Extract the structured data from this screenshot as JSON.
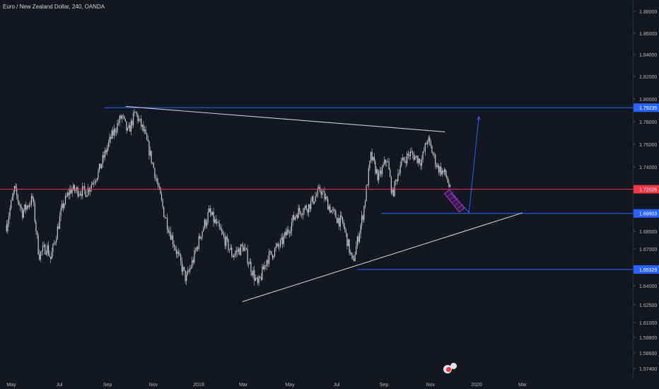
{
  "symbol": {
    "title": "Euro / New Zealand Dollar, 240, OANDA"
  },
  "colors": {
    "background": "#131722",
    "axis_text": "#b2b5be",
    "candle": "#c8cad0",
    "resistance_line": "#2962ff",
    "support_line": "#2962ff",
    "current_price_line": "#f23645",
    "trendline": "#c9ccd4",
    "projection": "#2962ff",
    "pattern": "#9c27b0"
  },
  "chart_data": {
    "type": "candlestick",
    "x_tick_labels": [
      "May",
      "Jul",
      "Sep",
      "Nov",
      "2019",
      "Mar",
      "May",
      "Jul",
      "Sep",
      "Nov",
      "2020",
      "Mar"
    ],
    "y_tick_labels": [
      "1.88000",
      "1.86000",
      "1.84000",
      "1.82000",
      "1.80000",
      "1.78000",
      "1.76000",
      "1.74000",
      "1.72000",
      "1.70000",
      "1.68500",
      "1.67000",
      "1.65500",
      "1.64000",
      "1.62500",
      "1.61000",
      "1.59800",
      "1.58600",
      "1.57400"
    ],
    "y_ticks": [
      1.88,
      1.86,
      1.84,
      1.82,
      1.8,
      1.78,
      1.76,
      1.74,
      1.72,
      1.7,
      1.685,
      1.67,
      1.655,
      1.64,
      1.625,
      1.61,
      1.598,
      1.586,
      1.574
    ],
    "price_path": [
      [
        "2018-04-25",
        1.69
      ],
      [
        "2018-05-05",
        1.72
      ],
      [
        "2018-05-15",
        1.7
      ],
      [
        "2018-05-28",
        1.712
      ],
      [
        "2018-06-05",
        1.665
      ],
      [
        "2018-06-15",
        1.672
      ],
      [
        "2018-06-20",
        1.662
      ],
      [
        "2018-07-05",
        1.705
      ],
      [
        "2018-07-15",
        1.72
      ],
      [
        "2018-08-05",
        1.718
      ],
      [
        "2018-08-20",
        1.735
      ],
      [
        "2018-09-05",
        1.765
      ],
      [
        "2018-09-20",
        1.785
      ],
      [
        "2018-09-28",
        1.77
      ],
      [
        "2018-10-08",
        1.788
      ],
      [
        "2018-10-20",
        1.77
      ],
      [
        "2018-11-01",
        1.74
      ],
      [
        "2018-11-15",
        1.7
      ],
      [
        "2018-12-01",
        1.67
      ],
      [
        "2018-12-15",
        1.645
      ],
      [
        "2018-12-25",
        1.662
      ],
      [
        "2019-01-05",
        1.685
      ],
      [
        "2019-01-15",
        1.7
      ],
      [
        "2019-02-01",
        1.682
      ],
      [
        "2019-02-15",
        1.665
      ],
      [
        "2019-03-01",
        1.672
      ],
      [
        "2019-03-20",
        1.64
      ],
      [
        "2019-04-01",
        1.662
      ],
      [
        "2019-04-20",
        1.675
      ],
      [
        "2019-05-10",
        1.7
      ],
      [
        "2019-05-25",
        1.705
      ],
      [
        "2019-06-10",
        1.72
      ],
      [
        "2019-06-25",
        1.7
      ],
      [
        "2019-07-10",
        1.69
      ],
      [
        "2019-07-22",
        1.658
      ],
      [
        "2019-08-05",
        1.7
      ],
      [
        "2019-08-15",
        1.75
      ],
      [
        "2019-08-25",
        1.73
      ],
      [
        "2019-09-05",
        1.748
      ],
      [
        "2019-09-12",
        1.715
      ],
      [
        "2019-09-22",
        1.742
      ],
      [
        "2019-10-05",
        1.752
      ],
      [
        "2019-10-20",
        1.745
      ],
      [
        "2019-10-28",
        1.765
      ],
      [
        "2019-11-10",
        1.74
      ],
      [
        "2019-11-22",
        1.732
      ],
      [
        "2019-11-28",
        1.716
      ]
    ],
    "horizontal_levels": [
      {
        "price": 1.79235,
        "label": "1.79235",
        "role": "resistance",
        "start": "2018-08-28"
      },
      {
        "price": 1.72026,
        "label": "1.72026",
        "role": "current_price",
        "start": "2018-04-15"
      },
      {
        "price": 1.69903,
        "label": "1.69903",
        "role": "target",
        "start": "2019-08-28"
      },
      {
        "price": 1.65329,
        "label": "1.65329",
        "role": "support",
        "start": "2019-07-28"
      }
    ],
    "trendlines": [
      {
        "from": [
          "2018-09-25",
          1.7935
        ],
        "to": [
          "2019-11-20",
          1.771
        ],
        "role": "descending_resistance"
      },
      {
        "from": [
          "2019-02-28",
          1.6275
        ],
        "to": [
          "2020-03-01",
          1.6995
        ],
        "role": "ascending_support"
      }
    ],
    "projection_path": [
      [
        "2019-11-28",
        1.7165
      ],
      [
        "2019-12-22",
        1.6998
      ],
      [
        "2020-01-04",
        1.7845
      ]
    ],
    "x_range": [
      "2018-04-09",
      "2020-04-30"
    ],
    "y_range": [
      1.5685,
      1.8875
    ],
    "grid": false,
    "legend": "none"
  }
}
